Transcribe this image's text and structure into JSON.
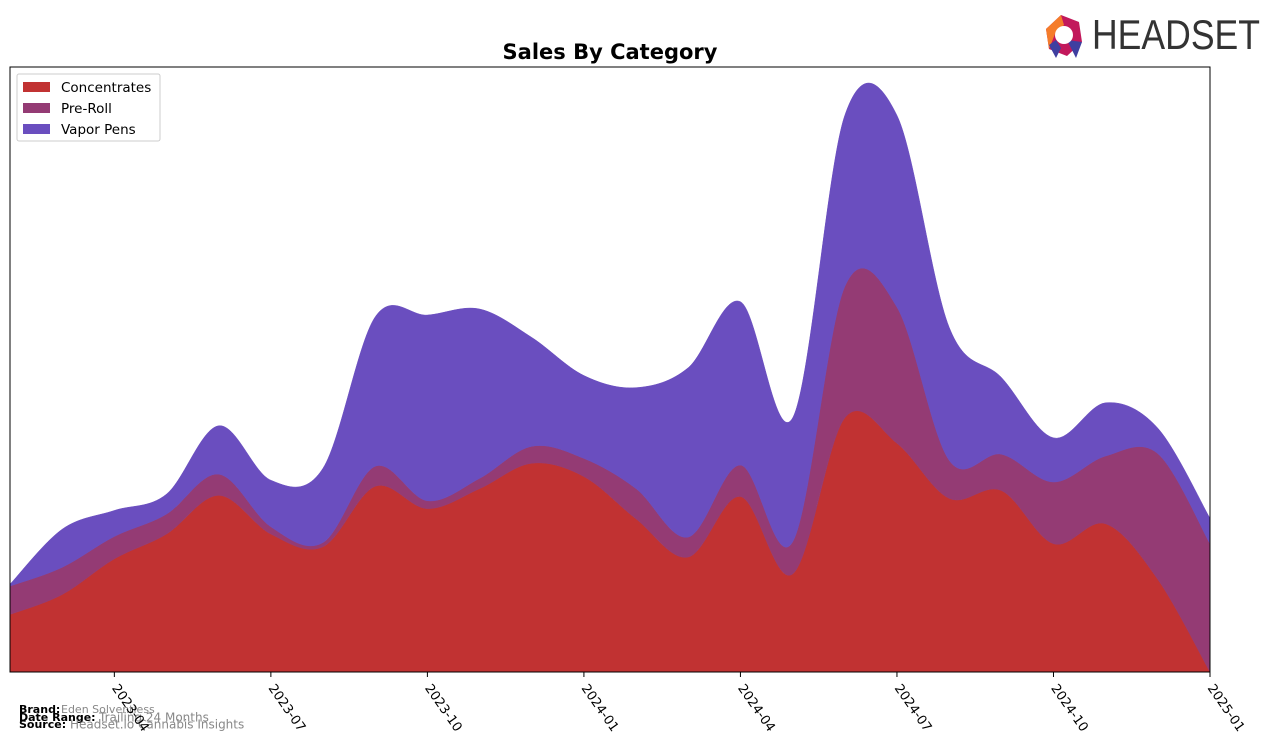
{
  "chart_data": {
    "type": "stacked-area",
    "title": "Sales By Category",
    "x": [
      "2023-02",
      "2023-03",
      "2023-04",
      "2023-05",
      "2023-06",
      "2023-07",
      "2023-08",
      "2023-09",
      "2023-10",
      "2023-11",
      "2023-12",
      "2024-01",
      "2024-02",
      "2024-03",
      "2024-04",
      "2024-05",
      "2024-06",
      "2024-07",
      "2024-08",
      "2024-09",
      "2024-10",
      "2024-11",
      "2024-12",
      "2025-01"
    ],
    "xlim": [
      "2023-02",
      "2025-01"
    ],
    "xticks": [
      "2023-04",
      "2023-07",
      "2023-10",
      "2024-01",
      "2024-04",
      "2024-07",
      "2024-10",
      "2025-01"
    ],
    "ylim": [
      0,
      100
    ],
    "legend": "upper left",
    "series": [
      {
        "name": "Concentrates",
        "color": "#c13232",
        "values": [
          9.5,
          12.8,
          18.7,
          22.8,
          29.2,
          22.8,
          20.7,
          30.7,
          27,
          30.3,
          34.5,
          32.3,
          25.3,
          19,
          29,
          16.2,
          42,
          37.8,
          28.7,
          30,
          21.2,
          24.5,
          15.3,
          0
        ]
      },
      {
        "name": "Pre-Roll",
        "color": "#943b74",
        "values": [
          4.7,
          4.5,
          3.7,
          3.3,
          3.5,
          1.2,
          0.7,
          3.3,
          1.3,
          1.7,
          2.8,
          3,
          5,
          3.3,
          5.2,
          5.3,
          21.7,
          22.5,
          6.3,
          6,
          10.2,
          11.2,
          20.8,
          21.2
        ]
      },
      {
        "name": "Vapor Pens",
        "color": "#6a4ebf",
        "values": [
          0.3,
          6.3,
          4.3,
          3.3,
          8,
          7.7,
          12.3,
          24.7,
          30.7,
          28,
          18,
          13.7,
          16.7,
          28,
          27,
          20.5,
          28.3,
          31.7,
          22,
          12.7,
          7.3,
          8.8,
          4.2,
          4.2
        ]
      }
    ]
  },
  "logo": "HEADSET",
  "footer": {
    "brand_label": "Brand:",
    "brand": "Eden Solventless",
    "range_label": "Date Range:",
    "range": "Trailing 24 Months",
    "source_label": "Source:",
    "source": "Headset.io Cannabis Insights"
  }
}
